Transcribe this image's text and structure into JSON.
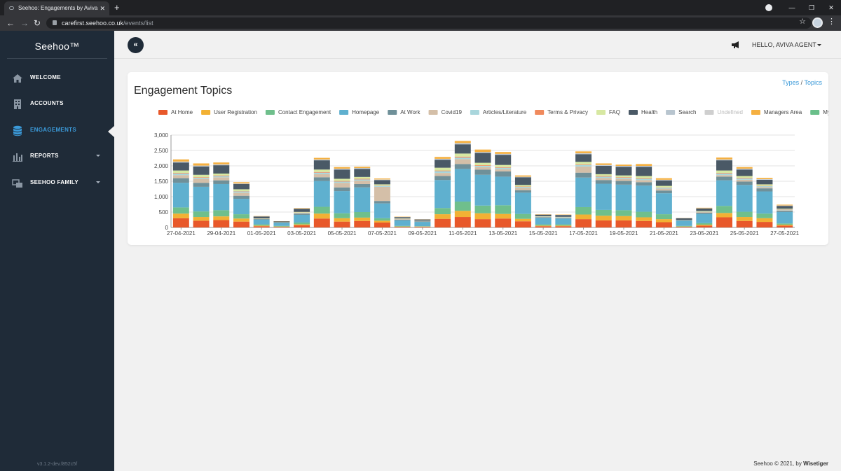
{
  "browser": {
    "tab_title": "Seehoo: Engagements by Aviva",
    "url_host": "carefirst.seehoo.co.uk",
    "url_path": "/events/list"
  },
  "sidebar": {
    "brand": "Seehoo™",
    "items": [
      {
        "label": "WELCOME",
        "icon": "home-icon"
      },
      {
        "label": "ACCOUNTS",
        "icon": "building-icon"
      },
      {
        "label": "ENGAGEMENTS",
        "icon": "database-icon",
        "active": true
      },
      {
        "label": "REPORTS",
        "icon": "bar-chart-icon",
        "caret": true
      },
      {
        "label": "SEEHOO FAMILY",
        "icon": "family-icon",
        "caret": true
      }
    ],
    "version": "v3.1.2-dev.f852c5f"
  },
  "header": {
    "collapse_symbol": "«",
    "user_greeting": "HELLO, AVIVA AGENT"
  },
  "card": {
    "title": "Engagement Topics",
    "link_types": "Types",
    "separator": "/",
    "link_topics": "Topics"
  },
  "footer": {
    "text": "Seehoo © 2021, by",
    "company": "Wisetiger"
  },
  "chart_data": {
    "type": "bar",
    "stacked": true,
    "ylim": [
      0,
      3000
    ],
    "yticks": [
      0,
      500,
      1000,
      1500,
      2000,
      2500,
      3000
    ],
    "ytick_labels": [
      "0",
      "500",
      "1,000",
      "1,500",
      "2,000",
      "2,500",
      "3,000"
    ],
    "grid": true,
    "legend_position": "top",
    "categories": [
      "27-04-2021",
      "28-04-2021",
      "29-04-2021",
      "30-04-2021",
      "01-05-2021",
      "02-05-2021",
      "03-05-2021",
      "04-05-2021",
      "05-05-2021",
      "06-05-2021",
      "07-05-2021",
      "08-05-2021",
      "09-05-2021",
      "10-05-2021",
      "11-05-2021",
      "12-05-2021",
      "13-05-2021",
      "14-05-2021",
      "15-05-2021",
      "16-05-2021",
      "17-05-2021",
      "18-05-2021",
      "19-05-2021",
      "20-05-2021",
      "21-05-2021",
      "22-05-2021",
      "23-05-2021",
      "24-05-2021",
      "25-05-2021",
      "26-05-2021",
      "27-05-2021"
    ],
    "xtick_labels": [
      "27-04-2021",
      "29-04-2021",
      "01-05-2021",
      "03-05-2021",
      "05-05-2021",
      "07-05-2021",
      "09-05-2021",
      "11-05-2021",
      "13-05-2021",
      "15-05-2021",
      "17-05-2021",
      "19-05-2021",
      "21-05-2021",
      "23-05-2021",
      "25-05-2021",
      "27-05-2021"
    ],
    "series": [
      {
        "name": "At Home",
        "color": "#e8582a",
        "values": [
          300,
          220,
          240,
          190,
          40,
          20,
          70,
          290,
          190,
          210,
          160,
          20,
          20,
          280,
          340,
          270,
          290,
          200,
          40,
          40,
          270,
          230,
          230,
          210,
          170,
          20,
          60,
          330,
          210,
          180,
          60
        ]
      },
      {
        "name": "User Registration",
        "color": "#f2b134",
        "values": [
          150,
          120,
          120,
          100,
          20,
          10,
          30,
          160,
          110,
          110,
          60,
          10,
          10,
          150,
          200,
          190,
          150,
          80,
          20,
          20,
          150,
          150,
          140,
          120,
          100,
          10,
          30,
          140,
          130,
          120,
          30
        ]
      },
      {
        "name": "Contact Engagement",
        "color": "#6fbf8c",
        "values": [
          200,
          180,
          200,
          140,
          40,
          20,
          60,
          220,
          160,
          180,
          80,
          20,
          10,
          200,
          300,
          250,
          280,
          160,
          40,
          40,
          240,
          190,
          190,
          180,
          160,
          20,
          50,
          230,
          170,
          150,
          40
        ]
      },
      {
        "name": "Homepage",
        "color": "#5fb0cf",
        "values": [
          800,
          800,
          850,
          500,
          150,
          100,
          250,
          840,
          720,
          800,
          480,
          180,
          140,
          910,
          1060,
          1000,
          930,
          690,
          210,
          190,
          960,
          850,
          830,
          850,
          680,
          170,
          300,
          830,
          870,
          720,
          370
        ]
      },
      {
        "name": "At Work",
        "color": "#6f9099",
        "values": [
          150,
          130,
          120,
          100,
          20,
          10,
          40,
          120,
          120,
          110,
          80,
          20,
          20,
          130,
          160,
          170,
          170,
          80,
          20,
          20,
          160,
          120,
          120,
          110,
          90,
          10,
          40,
          120,
          110,
          100,
          40
        ]
      },
      {
        "name": "Covid19",
        "color": "#d4bfa8",
        "values": [
          100,
          120,
          100,
          100,
          0,
          0,
          20,
          100,
          150,
          110,
          460,
          20,
          10,
          100,
          160,
          80,
          70,
          80,
          10,
          10,
          200,
          70,
          60,
          70,
          60,
          0,
          20,
          50,
          60,
          40,
          20
        ]
      },
      {
        "name": "Articles/Literature",
        "color": "#a9d6dc",
        "values": [
          50,
          40,
          40,
          40,
          10,
          5,
          10,
          50,
          40,
          40,
          30,
          10,
          5,
          60,
          50,
          40,
          50,
          30,
          10,
          10,
          50,
          40,
          40,
          40,
          30,
          5,
          10,
          50,
          40,
          30,
          20
        ]
      },
      {
        "name": "Terms & Privacy",
        "color": "#f08a5d",
        "values": [
          20,
          20,
          20,
          10,
          5,
          0,
          5,
          20,
          20,
          20,
          10,
          5,
          0,
          20,
          30,
          20,
          20,
          10,
          5,
          5,
          20,
          20,
          20,
          20,
          10,
          0,
          5,
          20,
          20,
          10,
          10
        ]
      },
      {
        "name": "FAQ",
        "color": "#d7e8a2",
        "values": [
          80,
          80,
          60,
          60,
          10,
          5,
          20,
          80,
          70,
          60,
          40,
          10,
          5,
          90,
          100,
          80,
          70,
          50,
          10,
          10,
          80,
          60,
          60,
          70,
          50,
          5,
          20,
          80,
          60,
          50,
          20
        ]
      },
      {
        "name": "Health",
        "color": "#4a5966",
        "values": [
          260,
          270,
          270,
          170,
          60,
          30,
          100,
          300,
          300,
          260,
          140,
          40,
          40,
          260,
          300,
          320,
          330,
          250,
          50,
          60,
          250,
          270,
          280,
          300,
          180,
          60,
          80,
          330,
          210,
          150,
          90
        ]
      },
      {
        "name": "Search",
        "color": "#b8c5cf",
        "values": [
          20,
          20,
          20,
          10,
          5,
          0,
          5,
          20,
          20,
          20,
          10,
          5,
          0,
          20,
          30,
          20,
          20,
          10,
          5,
          5,
          20,
          20,
          20,
          20,
          10,
          0,
          5,
          20,
          20,
          10,
          10
        ]
      },
      {
        "name": "Undefined",
        "color": "#cfcfcf",
        "values": [
          10,
          10,
          10,
          10,
          0,
          0,
          5,
          10,
          10,
          10,
          10,
          0,
          0,
          10,
          10,
          10,
          10,
          10,
          0,
          0,
          10,
          10,
          10,
          10,
          10,
          0,
          5,
          10,
          10,
          10,
          5
        ]
      },
      {
        "name": "Managers Area",
        "color": "#f5b041",
        "values": [
          70,
          70,
          60,
          40,
          10,
          5,
          15,
          50,
          50,
          40,
          30,
          10,
          5,
          60,
          70,
          80,
          60,
          40,
          10,
          10,
          60,
          50,
          40,
          60,
          50,
          5,
          15,
          60,
          50,
          40,
          25
        ]
      },
      {
        "name": "MyEva",
        "color": "#6abf8a",
        "values": [
          0,
          0,
          0,
          0,
          0,
          0,
          0,
          0,
          0,
          0,
          0,
          0,
          0,
          0,
          0,
          0,
          0,
          0,
          0,
          0,
          0,
          0,
          0,
          0,
          0,
          0,
          0,
          0,
          0,
          0,
          0
        ]
      }
    ]
  }
}
